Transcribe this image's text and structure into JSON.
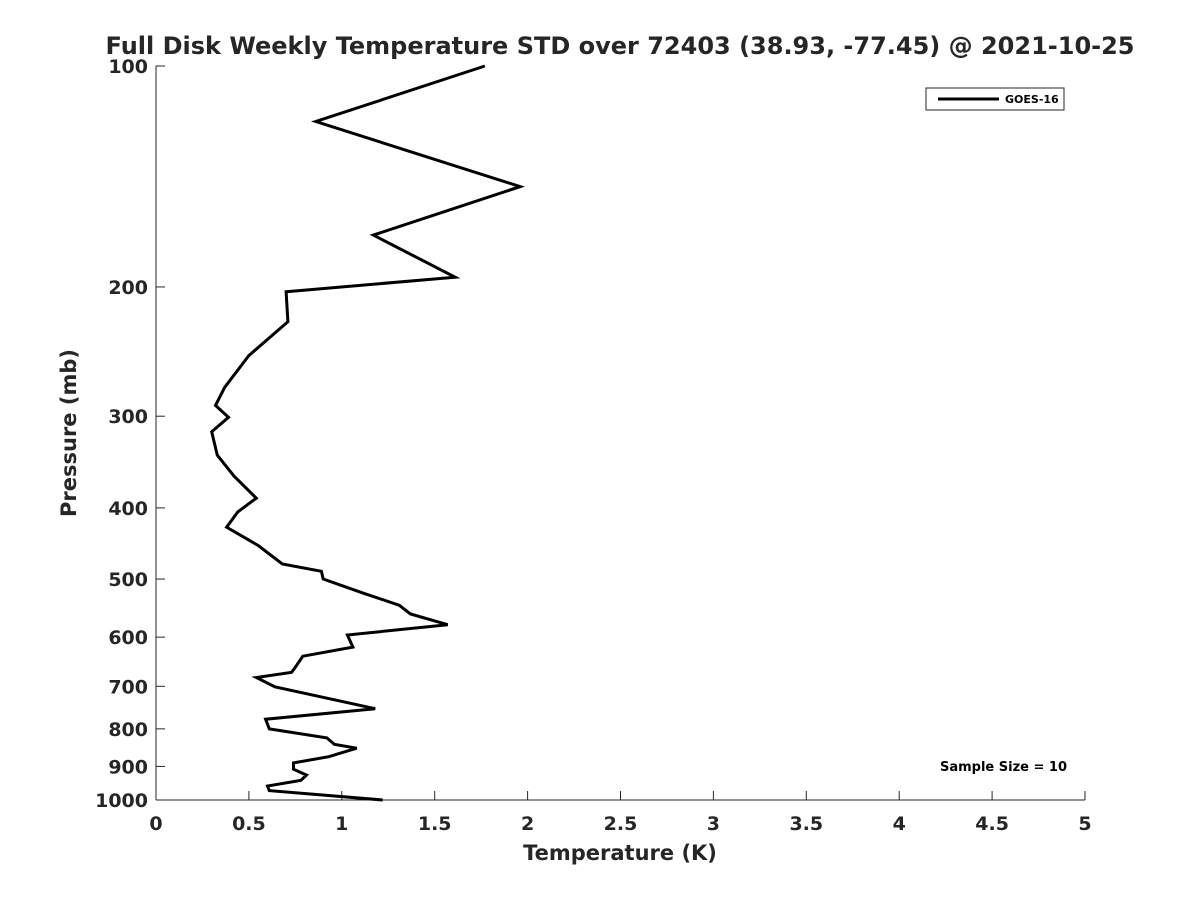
{
  "chart_data": {
    "type": "line",
    "title": "Full Disk Weekly Temperature STD over 72403 (38.93, -77.45) @ 2021-10-25",
    "xlabel": "Temperature (K)",
    "ylabel": "Pressure (mb)",
    "xlim": [
      0,
      5
    ],
    "ylim": [
      100,
      1000
    ],
    "y_scale": "log",
    "y_reversed": true,
    "x_ticks": [
      "0",
      "0.5",
      "1",
      "1.5",
      "2",
      "2.5",
      "3",
      "3.5",
      "4",
      "4.5",
      "5"
    ],
    "y_ticks": [
      "100",
      "200",
      "300",
      "400",
      "500",
      "600",
      "700",
      "800",
      "900",
      "1000"
    ],
    "grid": false,
    "legend_position": "top-right",
    "annotation": "Sample Size = 10",
    "series": [
      {
        "name": "GOES-16",
        "color": "#000000",
        "points": [
          [
            1.77,
            100
          ],
          [
            0.86,
            119
          ],
          [
            1.96,
            146
          ],
          [
            1.17,
            170
          ],
          [
            1.61,
            194
          ],
          [
            0.7,
            203
          ],
          [
            0.71,
            223
          ],
          [
            0.5,
            248
          ],
          [
            0.37,
            274
          ],
          [
            0.32,
            290
          ],
          [
            0.39,
            301
          ],
          [
            0.3,
            315
          ],
          [
            0.33,
            339
          ],
          [
            0.42,
            362
          ],
          [
            0.54,
            388
          ],
          [
            0.44,
            405
          ],
          [
            0.38,
            425
          ],
          [
            0.55,
            450
          ],
          [
            0.68,
            477
          ],
          [
            0.89,
            488
          ],
          [
            0.9,
            500
          ],
          [
            1.12,
            523
          ],
          [
            1.31,
            543
          ],
          [
            1.37,
            558
          ],
          [
            1.57,
            577
          ],
          [
            1.03,
            596
          ],
          [
            1.06,
            619
          ],
          [
            0.79,
            637
          ],
          [
            0.75,
            659
          ],
          [
            0.73,
            670
          ],
          [
            0.54,
            681
          ],
          [
            0.64,
            701
          ],
          [
            1.18,
            751
          ],
          [
            0.59,
            776
          ],
          [
            0.61,
            800
          ],
          [
            0.92,
            823
          ],
          [
            0.96,
            840
          ],
          [
            1.08,
            850
          ],
          [
            0.93,
            873
          ],
          [
            0.74,
            890
          ],
          [
            0.74,
            908
          ],
          [
            0.81,
            925
          ],
          [
            0.78,
            940
          ],
          [
            0.6,
            957
          ],
          [
            0.61,
            971
          ],
          [
            1.22,
            1000
          ]
        ]
      }
    ]
  }
}
